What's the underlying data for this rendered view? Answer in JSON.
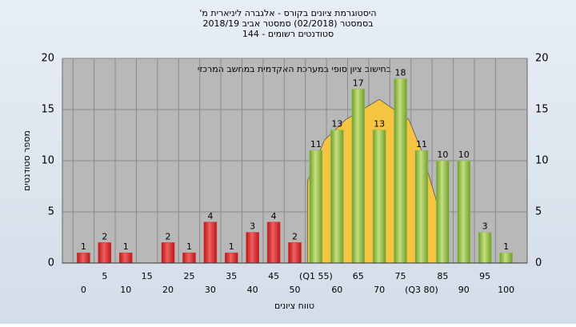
{
  "chart_data": {
    "type": "bar",
    "title": "היסטוגרמת ציונים בקורס - אלגברה ליניארית מ'",
    "subtitle": "בסמסטר (02/2018) סמסטר אביב 2018/19",
    "subtitle2": "סטודנטים רשומים - 144",
    "annotation": "בחישוב ציון סופי במערכת האקדמית במחשב המרכזי",
    "xlabel": "טווח ציונים",
    "ylabel": "מספר סטודנטים",
    "categories": [
      "0",
      "5",
      "10",
      "15",
      "20",
      "25",
      "30",
      "35",
      "40",
      "45",
      "50",
      "(Q1 55)",
      "60",
      "65",
      "70",
      "75",
      "(Q3 80)",
      "85",
      "90",
      "95",
      "100"
    ],
    "values": [
      1,
      2,
      1,
      null,
      2,
      1,
      4,
      1,
      3,
      4,
      2,
      11,
      13,
      17,
      13,
      18,
      11,
      10,
      10,
      3,
      1
    ],
    "colors": [
      "#e03030",
      "#e03030",
      "#e03030",
      "#e03030",
      "#e03030",
      "#e03030",
      "#e03030",
      "#e03030",
      "#e03030",
      "#e03030",
      "#e03030",
      "#8cc04a",
      "#8cc04a",
      "#8cc04a",
      "#8cc04a",
      "#8cc04a",
      "#8cc04a",
      "#8cc04a",
      "#8cc04a",
      "#8cc04a",
      "#8cc04a"
    ],
    "curve": {
      "color": "#f5c542",
      "x": [
        53,
        57,
        62,
        70,
        77,
        80,
        85
      ],
      "values": [
        8,
        12,
        14,
        16,
        14,
        11,
        4
      ]
    },
    "ylim": [
      0,
      20
    ],
    "yticks": [
      0,
      5,
      10,
      15,
      20
    ],
    "grid": true
  }
}
